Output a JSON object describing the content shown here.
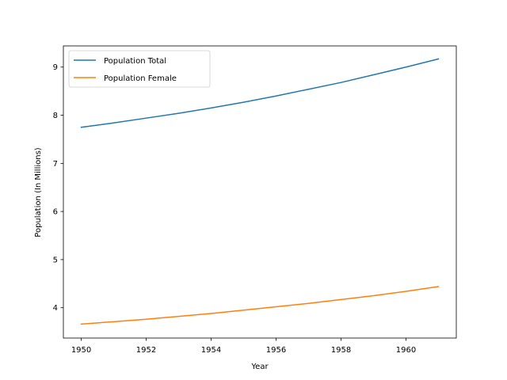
{
  "chart_data": {
    "type": "line",
    "title": "",
    "xlabel": "Year",
    "ylabel": "Population (In Millions)",
    "xlim": [
      1949.45,
      1961.55
    ],
    "ylim": [
      3.37,
      9.44
    ],
    "xticks": [
      1950,
      1952,
      1954,
      1956,
      1958,
      1960
    ],
    "yticks": [
      4,
      5,
      6,
      7,
      8,
      9
    ],
    "grid": false,
    "legend_position": "top-left",
    "x": [
      1950,
      1951,
      1952,
      1953,
      1954,
      1955,
      1956,
      1957,
      1958,
      1959,
      1960,
      1961
    ],
    "series": [
      {
        "name": "Population Total",
        "color": "#1f77b4",
        "values": [
          7.75,
          7.84,
          7.94,
          8.04,
          8.15,
          8.27,
          8.4,
          8.54,
          8.68,
          8.84,
          9.0,
          9.17
        ]
      },
      {
        "name": "Population Female",
        "color": "#ff7f0e",
        "values": [
          3.66,
          3.71,
          3.76,
          3.82,
          3.88,
          3.95,
          4.02,
          4.09,
          4.17,
          4.25,
          4.34,
          4.44
        ]
      }
    ]
  }
}
